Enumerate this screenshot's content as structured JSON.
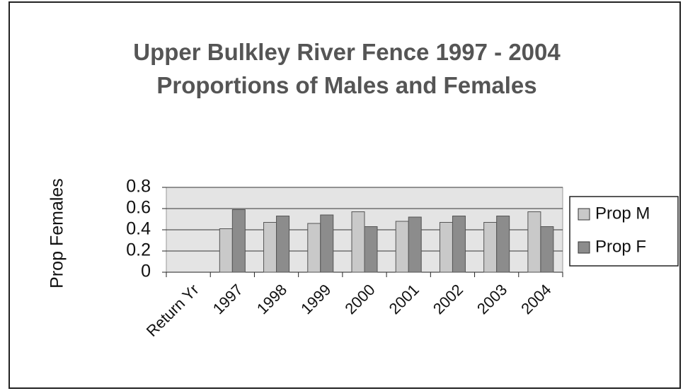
{
  "chart_data": {
    "type": "bar",
    "title": "Upper Bulkley River Fence 1997 - 2004 Proportions of Males and Females",
    "ylabel": "Prop Females",
    "categories": [
      "Return Yr",
      "1997",
      "1998",
      "1999",
      "2000",
      "2001",
      "2002",
      "2003",
      "2004"
    ],
    "series": [
      {
        "name": "Prop M",
        "color": "#c9c9c9",
        "values": [
          null,
          0.41,
          0.47,
          0.46,
          0.57,
          0.48,
          0.47,
          0.47,
          0.57
        ]
      },
      {
        "name": "Prop F",
        "color": "#8c8c8c",
        "values": [
          null,
          0.59,
          0.53,
          0.54,
          0.43,
          0.52,
          0.53,
          0.53,
          0.43
        ]
      }
    ],
    "ylim": [
      0,
      0.8
    ],
    "yticks": [
      0,
      0.2,
      0.4,
      0.6,
      0.8
    ],
    "grid": true,
    "legend": "right"
  }
}
